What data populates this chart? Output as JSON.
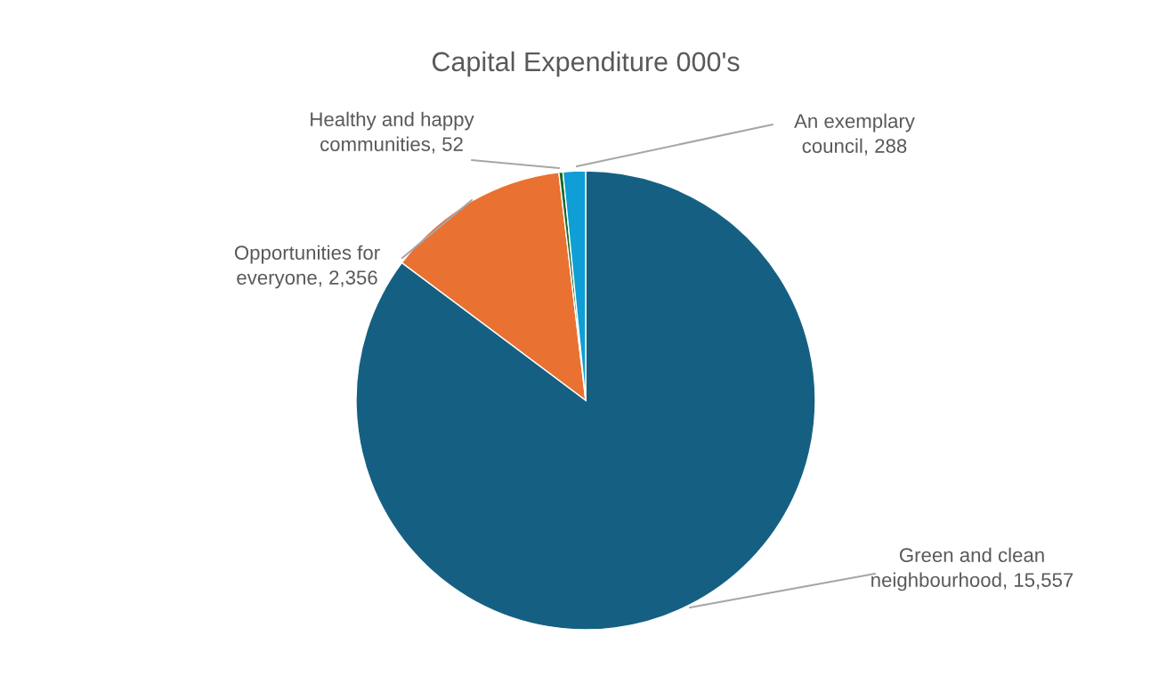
{
  "chart_data": {
    "type": "pie",
    "title": "Capital Expenditure 000's",
    "categories": [
      "Green and clean neighbourhood",
      "Opportunities for everyone",
      "Healthy and happy communities",
      "An exemplary council"
    ],
    "values": [
      15557,
      2356,
      52,
      288
    ],
    "colors": [
      "#156082",
      "#e97132",
      "#196b24",
      "#0f9ed5"
    ],
    "value_labels": [
      "15,557",
      "2,356",
      "52",
      "288"
    ],
    "legend": false
  }
}
